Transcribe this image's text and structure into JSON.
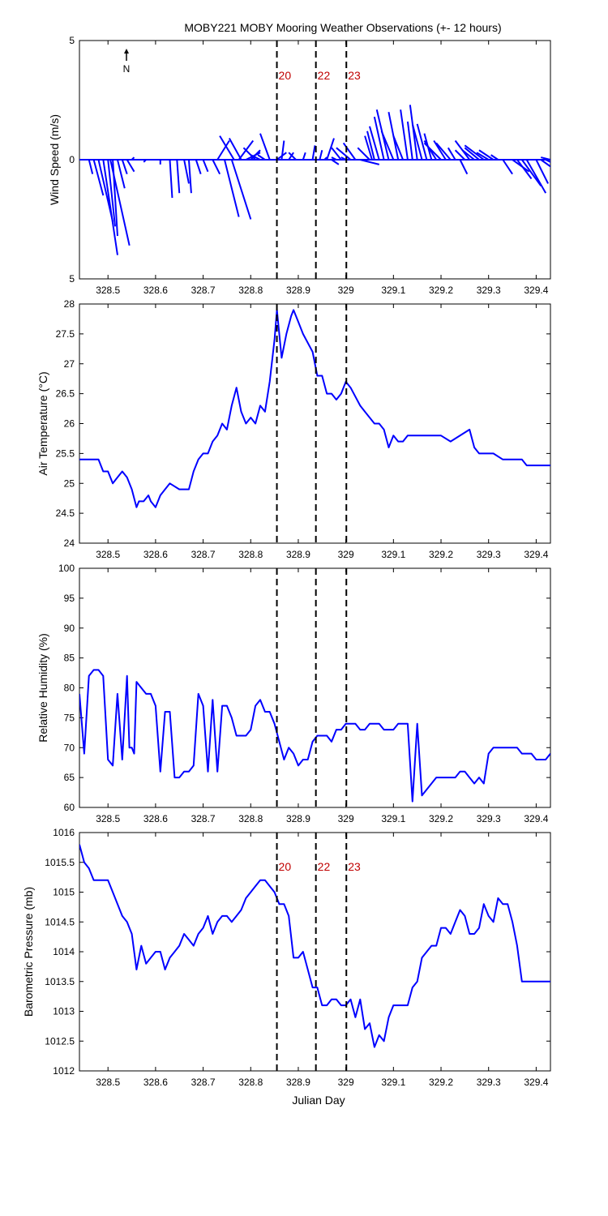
{
  "title": "MOBY221 MOBY Mooring Weather Observations (+- 12 hours)",
  "x_label": "Julian Day",
  "north_label": "N",
  "colors": {
    "data": "#0000ff",
    "marker_label": "#c00000",
    "axes": "#000000"
  },
  "markers": [
    {
      "x": 328.855,
      "label": "20"
    },
    {
      "x": 328.937,
      "label": "22"
    },
    {
      "x": 329.001,
      "label": "23"
    }
  ],
  "chart_data": [
    {
      "type": "quiver",
      "ylabel": "Wind Speed (m/s)",
      "xlim": [
        328.44,
        329.43
      ],
      "ylim": [
        -5,
        5
      ],
      "x_ticks": [
        "328.5",
        "328.6",
        "328.7",
        "328.8",
        "328.9",
        "329",
        "329.1",
        "329.2",
        "329.3",
        "329.4"
      ],
      "y_ticks": [
        {
          "v": 5,
          "label": "5"
        },
        {
          "v": 0,
          "label": "0"
        },
        {
          "v": -5,
          "label": "5"
        }
      ],
      "show_marker_labels": true,
      "vectors": [
        [
          328.46,
          0.15,
          -0.6
        ],
        [
          328.47,
          0.4,
          -1.5
        ],
        [
          328.48,
          0.6,
          -2.6
        ],
        [
          328.49,
          0.6,
          -4.0
        ],
        [
          328.5,
          0.3,
          -2.8
        ],
        [
          328.505,
          0.8,
          -3.6
        ],
        [
          328.51,
          0.2,
          -3.2
        ],
        [
          328.52,
          0.3,
          -1.2
        ],
        [
          328.53,
          0.2,
          -0.6
        ],
        [
          328.54,
          0.3,
          -0.5
        ],
        [
          328.55,
          0.1,
          0.1
        ],
        [
          328.58,
          -0.1,
          -0.1
        ],
        [
          328.61,
          0.0,
          -0.2
        ],
        [
          328.63,
          0.1,
          -1.6
        ],
        [
          328.645,
          0.1,
          -1.4
        ],
        [
          328.66,
          0.2,
          -1.0
        ],
        [
          328.67,
          0.1,
          -1.4
        ],
        [
          328.685,
          0.2,
          -0.6
        ],
        [
          328.7,
          0.2,
          -0.5
        ],
        [
          328.72,
          0.3,
          -0.6
        ],
        [
          328.73,
          0.5,
          0.8
        ],
        [
          328.745,
          0.6,
          -2.4
        ],
        [
          328.76,
          0.8,
          -2.5
        ],
        [
          328.765,
          -0.6,
          1.0
        ],
        [
          328.775,
          0.6,
          0.8
        ],
        [
          328.78,
          -0.5,
          0.9
        ],
        [
          328.79,
          0.6,
          0.3
        ],
        [
          328.8,
          0.4,
          0.4
        ],
        [
          328.81,
          -0.5,
          0.5
        ],
        [
          328.82,
          -0.4,
          0.2
        ],
        [
          328.83,
          -0.3,
          0.2
        ],
        [
          328.84,
          -0.4,
          1.1
        ],
        [
          328.855,
          0.4,
          0.3
        ],
        [
          328.865,
          0.1,
          0.8
        ],
        [
          328.88,
          0.2,
          0.3
        ],
        [
          328.895,
          -0.3,
          0.3
        ],
        [
          328.91,
          0.1,
          0.3
        ],
        [
          328.93,
          0.1,
          0.6
        ],
        [
          328.945,
          0.1,
          0.4
        ],
        [
          328.955,
          0.1,
          0.1
        ],
        [
          328.96,
          0.3,
          0.9
        ],
        [
          328.97,
          0.3,
          -0.2
        ],
        [
          328.98,
          -0.2,
          0.1
        ],
        [
          328.99,
          -0.4,
          0.5
        ],
        [
          329.0,
          -0.2,
          0.1
        ],
        [
          329.01,
          -0.6,
          0.5
        ],
        [
          329.02,
          -0.5,
          0.7
        ],
        [
          329.03,
          0.8,
          -0.2
        ],
        [
          329.05,
          -0.5,
          0.5
        ],
        [
          329.055,
          -0.3,
          1.0
        ],
        [
          329.06,
          -0.3,
          1.2
        ],
        [
          329.07,
          -0.4,
          1.4
        ],
        [
          329.08,
          -0.4,
          1.8
        ],
        [
          329.09,
          -0.5,
          2.1
        ],
        [
          329.1,
          -0.5,
          1.2
        ],
        [
          329.11,
          -0.4,
          2.0
        ],
        [
          329.12,
          -0.4,
          1.0
        ],
        [
          329.13,
          -0.3,
          2.1
        ],
        [
          329.14,
          -0.2,
          1.6
        ],
        [
          329.15,
          -0.3,
          2.3
        ],
        [
          329.16,
          -0.4,
          1.5
        ],
        [
          329.17,
          -0.4,
          1.5
        ],
        [
          329.18,
          -0.3,
          1.1
        ],
        [
          329.19,
          -0.5,
          0.8
        ],
        [
          329.2,
          -0.7,
          0.7
        ],
        [
          329.21,
          -0.5,
          0.8
        ],
        [
          329.22,
          -0.6,
          0.7
        ],
        [
          329.23,
          -0.3,
          0.5
        ],
        [
          329.24,
          0.3,
          -0.6
        ],
        [
          329.25,
          -0.4,
          0.4
        ],
        [
          329.26,
          -0.6,
          0.8
        ],
        [
          329.27,
          -0.5,
          0.4
        ],
        [
          329.28,
          -0.6,
          0.5
        ],
        [
          329.29,
          -0.8,
          0.6
        ],
        [
          329.3,
          -0.5,
          0.3
        ],
        [
          329.31,
          -0.6,
          0.4
        ],
        [
          329.32,
          -0.3,
          0.2
        ],
        [
          329.33,
          0.4,
          -0.6
        ],
        [
          329.35,
          0.7,
          -0.5
        ],
        [
          329.36,
          0.6,
          -0.8
        ],
        [
          329.37,
          0.8,
          -1.1
        ],
        [
          329.38,
          0.8,
          -1.4
        ],
        [
          329.4,
          0.5,
          -1.0
        ],
        [
          329.41,
          0.7,
          -0.5
        ],
        [
          329.42,
          0.6,
          -0.3
        ],
        [
          329.43,
          -0.4,
          0.1
        ]
      ]
    },
    {
      "type": "line",
      "ylabel": "Air Temperature (°C)",
      "xlim": [
        328.44,
        329.43
      ],
      "ylim": [
        24,
        28
      ],
      "x_ticks": [
        "328.5",
        "328.6",
        "328.7",
        "328.8",
        "328.9",
        "329",
        "329.1",
        "329.2",
        "329.3",
        "329.4"
      ],
      "y_ticks": [
        {
          "v": 24,
          "label": "24"
        },
        {
          "v": 24.5,
          "label": "24.5"
        },
        {
          "v": 25,
          "label": "25"
        },
        {
          "v": 25.5,
          "label": "25.5"
        },
        {
          "v": 26,
          "label": "26"
        },
        {
          "v": 26.5,
          "label": "26.5"
        },
        {
          "v": 27,
          "label": "27"
        },
        {
          "v": 27.5,
          "label": "27.5"
        },
        {
          "v": 28,
          "label": "28"
        }
      ],
      "show_marker_labels": false,
      "x": [
        328.44,
        328.48,
        328.49,
        328.5,
        328.51,
        328.52,
        328.53,
        328.54,
        328.55,
        328.56,
        328.565,
        328.575,
        328.585,
        328.59,
        328.6,
        328.61,
        328.62,
        328.63,
        328.65,
        328.66,
        328.67,
        328.68,
        328.69,
        328.7,
        328.71,
        328.72,
        328.73,
        328.74,
        328.75,
        328.76,
        328.77,
        328.78,
        328.79,
        328.8,
        328.81,
        328.82,
        328.83,
        328.84,
        328.85,
        328.855,
        328.865,
        328.875,
        328.885,
        328.89,
        328.9,
        328.91,
        328.93,
        328.935,
        328.94,
        328.95,
        328.96,
        328.97,
        328.98,
        328.99,
        329.0,
        329.01,
        329.03,
        329.04,
        329.05,
        329.06,
        329.07,
        329.08,
        329.09,
        329.1,
        329.11,
        329.12,
        329.13,
        329.14,
        329.15,
        329.16,
        329.17,
        329.18,
        329.2,
        329.22,
        329.26,
        329.27,
        329.28,
        329.29,
        329.3,
        329.31,
        329.33,
        329.36,
        329.37,
        329.38,
        329.39,
        329.4,
        329.41,
        329.43
      ],
      "y": [
        25.4,
        25.4,
        25.2,
        25.2,
        25.0,
        25.1,
        25.2,
        25.1,
        24.9,
        24.6,
        24.7,
        24.7,
        24.8,
        24.7,
        24.6,
        24.8,
        24.9,
        25.0,
        24.9,
        24.9,
        24.9,
        25.2,
        25.4,
        25.5,
        25.5,
        25.7,
        25.8,
        26.0,
        25.9,
        26.3,
        26.6,
        26.2,
        26.0,
        26.1,
        26.0,
        26.3,
        26.2,
        26.7,
        27.4,
        27.9,
        27.1,
        27.5,
        27.8,
        27.9,
        27.7,
        27.5,
        27.2,
        27.0,
        26.8,
        26.8,
        26.5,
        26.5,
        26.4,
        26.5,
        26.7,
        26.6,
        26.3,
        26.2,
        26.1,
        26.0,
        26.0,
        25.9,
        25.6,
        25.8,
        25.7,
        25.7,
        25.8,
        25.8,
        25.8,
        25.8,
        25.8,
        25.8,
        25.8,
        25.7,
        25.9,
        25.6,
        25.5,
        25.5,
        25.5,
        25.5,
        25.4,
        25.4,
        25.4,
        25.3,
        25.3,
        25.3,
        25.3,
        25.3
      ]
    },
    {
      "type": "line",
      "ylabel": "Relative Humidity (%)",
      "xlim": [
        328.44,
        329.43
      ],
      "ylim": [
        60,
        100
      ],
      "x_ticks": [
        "328.5",
        "328.6",
        "328.7",
        "328.8",
        "328.9",
        "329",
        "329.1",
        "329.2",
        "329.3",
        "329.4"
      ],
      "y_ticks": [
        {
          "v": 60,
          "label": "60"
        },
        {
          "v": 65,
          "label": "65"
        },
        {
          "v": 70,
          "label": "70"
        },
        {
          "v": 75,
          "label": "75"
        },
        {
          "v": 80,
          "label": "80"
        },
        {
          "v": 85,
          "label": "85"
        },
        {
          "v": 90,
          "label": "90"
        },
        {
          "v": 95,
          "label": "95"
        },
        {
          "v": 100,
          "label": "100"
        }
      ],
      "show_marker_labels": false,
      "x": [
        328.44,
        328.45,
        328.46,
        328.47,
        328.48,
        328.49,
        328.5,
        328.51,
        328.52,
        328.53,
        328.54,
        328.545,
        328.55,
        328.555,
        328.56,
        328.57,
        328.58,
        328.59,
        328.6,
        328.61,
        328.62,
        328.63,
        328.64,
        328.65,
        328.66,
        328.67,
        328.68,
        328.69,
        328.7,
        328.71,
        328.72,
        328.73,
        328.74,
        328.745,
        328.75,
        328.76,
        328.77,
        328.78,
        328.79,
        328.8,
        328.81,
        328.82,
        328.83,
        328.84,
        328.85,
        328.86,
        328.87,
        328.88,
        328.89,
        328.9,
        328.91,
        328.92,
        328.93,
        328.94,
        328.95,
        328.96,
        328.97,
        328.98,
        328.99,
        329.0,
        329.01,
        329.02,
        329.03,
        329.04,
        329.05,
        329.06,
        329.07,
        329.08,
        329.09,
        329.1,
        329.11,
        329.12,
        329.13,
        329.14,
        329.15,
        329.16,
        329.17,
        329.18,
        329.19,
        329.2,
        329.21,
        329.22,
        329.23,
        329.24,
        329.25,
        329.26,
        329.27,
        329.28,
        329.29,
        329.3,
        329.31,
        329.32,
        329.33,
        329.34,
        329.35,
        329.36,
        329.37,
        329.38,
        329.39,
        329.4,
        329.41,
        329.42,
        329.43
      ],
      "y": [
        79,
        69,
        82,
        83,
        83,
        82,
        68,
        67,
        79,
        68,
        82,
        70,
        70,
        69,
        81,
        80,
        79,
        79,
        77,
        66,
        76,
        76,
        65,
        65,
        66,
        66,
        67,
        79,
        77,
        66,
        78,
        66,
        77,
        77,
        77,
        75,
        72,
        72,
        72,
        73,
        77,
        78,
        76,
        76,
        74,
        71,
        68,
        70,
        69,
        67,
        68,
        68,
        71,
        72,
        72,
        72,
        71,
        73,
        73,
        74,
        74,
        74,
        73,
        73,
        74,
        74,
        74,
        73,
        73,
        73,
        74,
        74,
        74,
        61,
        74,
        62,
        63,
        64,
        65,
        65,
        65,
        65,
        65,
        66,
        66,
        65,
        64,
        65,
        64,
        69,
        70,
        70,
        70,
        70,
        70,
        70,
        69,
        69,
        69,
        68,
        68,
        68,
        69
      ]
    },
    {
      "type": "line",
      "ylabel": "Barometric Pressure (mb)",
      "xlim": [
        328.44,
        329.43
      ],
      "ylim": [
        1012,
        1016
      ],
      "x_ticks": [
        "328.5",
        "328.6",
        "328.7",
        "328.8",
        "328.9",
        "329",
        "329.1",
        "329.2",
        "329.3",
        "329.4"
      ],
      "y_ticks": [
        {
          "v": 1012,
          "label": "1012"
        },
        {
          "v": 1012.5,
          "label": "1012.5"
        },
        {
          "v": 1013,
          "label": "1013"
        },
        {
          "v": 1013.5,
          "label": "1013.5"
        },
        {
          "v": 1014,
          "label": "1014"
        },
        {
          "v": 1014.5,
          "label": "1014.5"
        },
        {
          "v": 1015,
          "label": "1015"
        },
        {
          "v": 1015.5,
          "label": "1015.5"
        },
        {
          "v": 1016,
          "label": "1016"
        }
      ],
      "show_marker_labels": true,
      "x": [
        328.44,
        328.45,
        328.46,
        328.47,
        328.5,
        328.51,
        328.53,
        328.54,
        328.55,
        328.56,
        328.57,
        328.58,
        328.59,
        328.6,
        328.61,
        328.62,
        328.63,
        328.64,
        328.65,
        328.66,
        328.67,
        328.68,
        328.69,
        328.7,
        328.71,
        328.72,
        328.73,
        328.74,
        328.75,
        328.76,
        328.77,
        328.78,
        328.79,
        328.8,
        328.81,
        328.82,
        328.83,
        328.84,
        328.85,
        328.86,
        328.87,
        328.88,
        328.89,
        328.9,
        328.91,
        328.92,
        328.93,
        328.94,
        328.95,
        328.96,
        328.97,
        328.98,
        328.99,
        329.0,
        329.01,
        329.02,
        329.03,
        329.04,
        329.05,
        329.06,
        329.07,
        329.08,
        329.09,
        329.1,
        329.11,
        329.12,
        329.13,
        329.14,
        329.15,
        329.16,
        329.17,
        329.18,
        329.19,
        329.2,
        329.21,
        329.22,
        329.23,
        329.24,
        329.25,
        329.26,
        329.27,
        329.28,
        329.29,
        329.3,
        329.31,
        329.32,
        329.33,
        329.34,
        329.35,
        329.36,
        329.37,
        329.38,
        329.39,
        329.4,
        329.41,
        329.42,
        329.43
      ],
      "y": [
        1015.8,
        1015.5,
        1015.4,
        1015.2,
        1015.2,
        1015.0,
        1014.6,
        1014.5,
        1014.3,
        1013.7,
        1014.1,
        1013.8,
        1013.9,
        1014.0,
        1014.0,
        1013.7,
        1013.9,
        1014.0,
        1014.1,
        1014.3,
        1014.2,
        1014.1,
        1014.3,
        1014.4,
        1014.6,
        1014.3,
        1014.5,
        1014.6,
        1014.6,
        1014.5,
        1014.6,
        1014.7,
        1014.9,
        1015.0,
        1015.1,
        1015.2,
        1015.2,
        1015.1,
        1015.0,
        1014.8,
        1014.8,
        1014.6,
        1013.9,
        1013.9,
        1014.0,
        1013.7,
        1013.4,
        1013.4,
        1013.1,
        1013.1,
        1013.2,
        1013.2,
        1013.1,
        1013.1,
        1013.2,
        1012.9,
        1013.2,
        1012.7,
        1012.8,
        1012.4,
        1012.6,
        1012.5,
        1012.9,
        1013.1,
        1013.1,
        1013.1,
        1013.1,
        1013.4,
        1013.5,
        1013.9,
        1014.0,
        1014.1,
        1014.1,
        1014.4,
        1014.4,
        1014.3,
        1014.5,
        1014.7,
        1014.6,
        1014.3,
        1014.3,
        1014.4,
        1014.8,
        1014.6,
        1014.5,
        1014.9,
        1014.8,
        1014.8,
        1014.5,
        1014.1,
        1013.5,
        1013.5,
        1013.5,
        1013.5,
        1013.5,
        1013.5,
        1013.5
      ]
    }
  ]
}
